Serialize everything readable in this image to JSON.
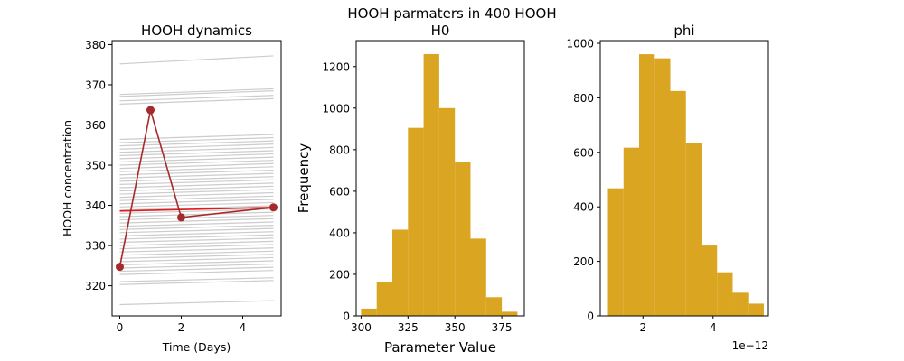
{
  "figure": {
    "suptitle": "HOOH parmaters in 400 HOOH"
  },
  "colors": {
    "gray_lines": "#cccccc",
    "observed": "#a52a2a",
    "best_fit": "#e31a1c",
    "hist_fill": "#daa520"
  },
  "chart_data": [
    {
      "type": "line",
      "title": "HOOH dynamics",
      "xlabel": "Time (Days)",
      "ylabel": "HOOH concentration",
      "xlim": [
        -0.25,
        5.25
      ],
      "ylim": [
        312.5,
        381
      ],
      "xticks": [
        0,
        2,
        4
      ],
      "yticks": [
        320,
        330,
        340,
        350,
        360,
        370,
        380
      ],
      "grid": false,
      "ensemble_x": [
        0,
        5
      ],
      "ensemble_start": [
        375.2,
        367.6,
        367.1,
        366.0,
        365.2,
        356.4,
        355.6,
        354.8,
        354.0,
        353.2,
        352.4,
        351.6,
        350.8,
        350.0,
        349.2,
        348.4,
        347.6,
        346.8,
        346.0,
        345.2,
        344.4,
        343.6,
        342.8,
        342.0,
        341.2,
        340.4,
        339.6,
        338.8,
        338.0,
        337.2,
        336.4,
        335.6,
        334.8,
        334.0,
        333.2,
        332.4,
        331.6,
        330.8,
        330.0,
        329.2,
        328.4,
        327.6,
        326.8,
        326.0,
        325.2,
        324.4,
        323.6,
        322.8,
        321.0,
        320.3,
        315.3
      ],
      "ensemble_slope": [
        0.4,
        0.28,
        0.28,
        0.27,
        0.27,
        0.25,
        0.25,
        0.25,
        0.25,
        0.24,
        0.24,
        0.24,
        0.24,
        0.24,
        0.24,
        0.24,
        0.23,
        0.23,
        0.23,
        0.23,
        0.23,
        0.23,
        0.23,
        0.23,
        0.22,
        0.22,
        0.22,
        0.22,
        0.22,
        0.22,
        0.22,
        0.22,
        0.21,
        0.21,
        0.21,
        0.21,
        0.21,
        0.21,
        0.21,
        0.21,
        0.2,
        0.2,
        0.2,
        0.2,
        0.2,
        0.2,
        0.2,
        0.2,
        0.2,
        0.2,
        0.2
      ],
      "observed": {
        "x": [
          0,
          1,
          2,
          5
        ],
        "y": [
          324.7,
          363.7,
          337.0,
          339.5
        ]
      },
      "best_fit": {
        "x": [
          0,
          5
        ],
        "y": [
          338.6,
          339.5
        ]
      }
    },
    {
      "type": "bar",
      "title": "H0",
      "xlabel": "Parameter Value",
      "ylabel": "Frequency",
      "xlim": [
        297.4,
        387.0
      ],
      "ylim": [
        0,
        1325
      ],
      "xticks": [
        300,
        325,
        350,
        375
      ],
      "yticks": [
        0,
        200,
        400,
        600,
        800,
        1000,
        1200
      ],
      "grid": false,
      "bin_edges": [
        300,
        308.33,
        316.67,
        325,
        333.33,
        341.67,
        350,
        358.33,
        366.67,
        375,
        383.33
      ],
      "values": [
        35,
        162,
        415,
        905,
        1260,
        1000,
        740,
        372,
        90,
        20
      ]
    },
    {
      "type": "bar",
      "title": "phi",
      "xlabel": "",
      "ylabel": "",
      "scale_label": "1e−12",
      "xlim": [
        0.78,
        5.58
      ],
      "ylim": [
        0,
        1010
      ],
      "xticks": [
        2,
        4
      ],
      "yticks": [
        0,
        200,
        400,
        600,
        800,
        1000
      ],
      "grid": false,
      "bin_edges": [
        1.0,
        1.445,
        1.89,
        2.335,
        2.78,
        3.225,
        3.67,
        4.115,
        4.56,
        5.005,
        5.45
      ],
      "values": [
        468,
        617,
        960,
        945,
        825,
        635,
        258,
        160,
        85,
        45
      ]
    }
  ]
}
